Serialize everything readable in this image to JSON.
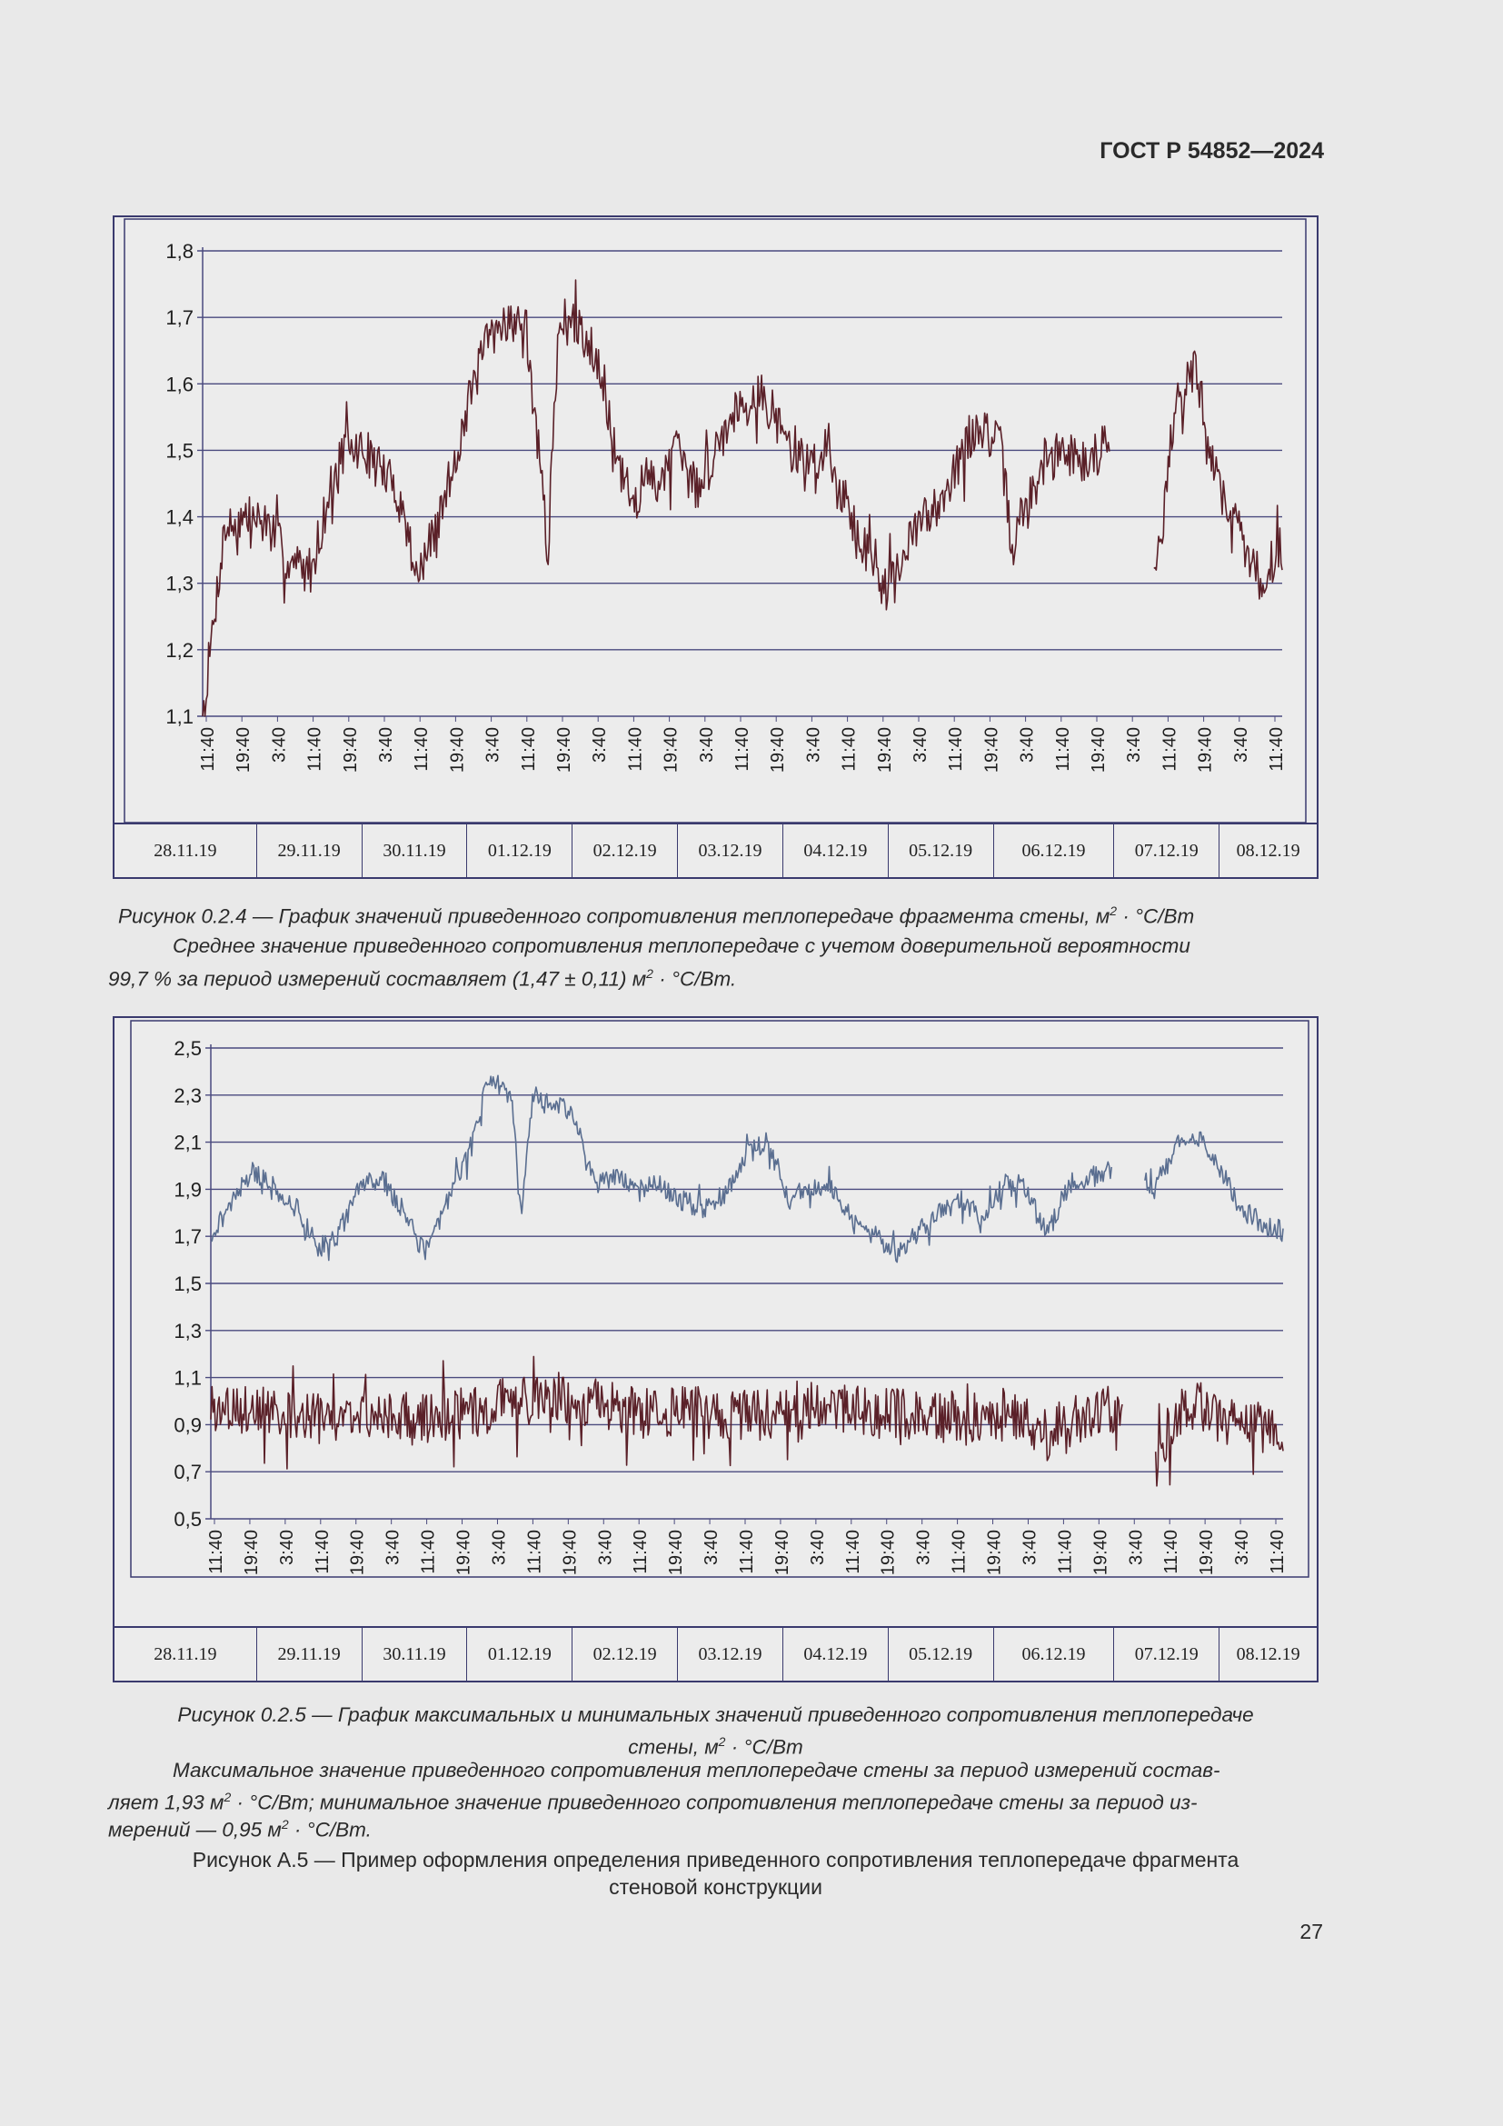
{
  "header": {
    "doc_code": "ГОСТ Р 54852—2024"
  },
  "page_number": "27",
  "colors": {
    "frame": "#3a3a6e",
    "grid": "#4a4a7e",
    "resistance_line": "#5a2028",
    "max_line": "#5a6e90",
    "min_line": "#5a2028"
  },
  "date_labels": [
    "28.11.19",
    "29.11.19",
    "30.11.19",
    "01.12.19",
    "02.12.19",
    "03.12.19",
    "04.12.19",
    "05.12.19",
    "06.12.19",
    "07.12.19",
    "08.12.19"
  ],
  "chart_data": [
    {
      "type": "line",
      "figure": "0.2.4",
      "title": "",
      "ylim": [
        1.1,
        1.8
      ],
      "yticks": [
        "1,1",
        "1,2",
        "1,3",
        "1,4",
        "1,5",
        "1,6",
        "1,7",
        "1,8"
      ],
      "xticks": [
        "11:40",
        "19:40",
        "3:40",
        "11:40",
        "19:40",
        "3:40",
        "11:40",
        "19:40",
        "3:40",
        "11:40",
        "19:40",
        "3:40",
        "11:40",
        "19:40",
        "3:40",
        "11:40",
        "19:40",
        "3:40",
        "11:40",
        "19:40",
        "3:40",
        "11:40",
        "19:40",
        "3:40",
        "11:40",
        "19:40",
        "3:40",
        "11:40",
        "19:40",
        "3:40",
        "11:40"
      ],
      "series": [
        {
          "name": "R",
          "x": [
            0.0,
            0.02,
            0.04,
            0.06,
            0.08,
            0.1,
            0.12,
            0.13,
            0.15,
            0.18,
            0.2,
            0.22,
            0.24,
            0.26,
            0.28,
            0.3,
            0.32,
            0.33,
            0.35,
            0.36,
            0.37,
            0.38,
            0.39,
            0.4,
            0.41,
            0.42,
            0.43,
            0.44,
            0.45,
            0.46,
            0.48,
            0.5,
            0.52,
            0.54,
            0.56,
            0.58,
            0.6,
            0.62,
            0.64,
            0.66,
            0.68,
            0.7,
            0.72,
            0.74,
            0.75,
            0.76,
            0.78,
            0.8,
            0.82,
            0.84,
            0.86,
            0.88,
            0.89,
            0.9,
            0.91,
            0.92,
            0.94,
            0.96,
            0.98,
            1.0
          ],
          "y": [
            1.1,
            1.38,
            1.4,
            1.39,
            1.33,
            1.32,
            1.45,
            1.5,
            1.5,
            1.44,
            1.31,
            1.4,
            1.53,
            1.65,
            1.7,
            1.68,
            1.35,
            1.7,
            1.68,
            1.66,
            1.62,
            1.5,
            1.45,
            1.42,
            1.46,
            1.45,
            1.48,
            1.5,
            1.46,
            1.44,
            1.52,
            1.58,
            1.58,
            1.52,
            1.48,
            1.5,
            1.4,
            1.33,
            1.3,
            1.38,
            1.42,
            1.48,
            1.54,
            1.5,
            1.35,
            1.4,
            1.48,
            1.5,
            1.48,
            1.52,
            null,
            1.32,
            1.4,
            1.56,
            1.6,
            1.62,
            1.45,
            1.38,
            1.3,
            1.36
          ],
          "noise": 0.035,
          "seed": 7
        }
      ],
      "caption": "Рисунок 0.2.4 — График значений приведенного сопротивления теплопередаче фрагмента стены, м",
      "caption_unit": "· °С/Вт",
      "note_line1": "Среднее значение приведенного сопротивления теплопередаче с учетом доверительной вероятности",
      "note_line2a": "99,7 % за период измерений составляет (1,47 ± 0,11) м",
      "note_line2b": "· °С/Вт."
    },
    {
      "type": "line",
      "figure": "0.2.5",
      "title": "",
      "ylim": [
        0.5,
        2.5
      ],
      "yticks": [
        "0,5",
        "0,7",
        "0,9",
        "1,1",
        "1,3",
        "1,5",
        "1,7",
        "1,9",
        "2,1",
        "2,3",
        "2,5"
      ],
      "xticks": [
        "11:40",
        "19:40",
        "3:40",
        "11:40",
        "19:40",
        "3:40",
        "11:40",
        "19:40",
        "3:40",
        "11:40",
        "19:40",
        "3:40",
        "11:40",
        "19:40",
        "3:40",
        "11:40",
        "19:40",
        "3:40",
        "11:40",
        "19:40",
        "3:40",
        "11:40",
        "19:40",
        "3:40",
        "11:40",
        "19:40",
        "3:40",
        "11:40",
        "19:40",
        "3:40",
        "11:40"
      ],
      "series": [
        {
          "name": "max",
          "x": [
            0.0,
            0.02,
            0.04,
            0.06,
            0.08,
            0.1,
            0.12,
            0.14,
            0.16,
            0.18,
            0.2,
            0.22,
            0.24,
            0.26,
            0.28,
            0.29,
            0.3,
            0.31,
            0.32,
            0.34,
            0.36,
            0.38,
            0.4,
            0.42,
            0.44,
            0.46,
            0.48,
            0.5,
            0.52,
            0.54,
            0.56,
            0.58,
            0.6,
            0.62,
            0.64,
            0.66,
            0.68,
            0.7,
            0.72,
            0.74,
            0.76,
            0.78,
            0.8,
            0.82,
            0.84,
            0.86,
            0.87,
            0.88,
            0.9,
            0.92,
            0.94,
            0.96,
            0.98,
            1.0
          ],
          "y": [
            1.7,
            1.85,
            1.98,
            1.9,
            1.82,
            1.65,
            1.72,
            1.92,
            1.95,
            1.8,
            1.62,
            1.85,
            2.05,
            2.38,
            2.3,
            1.8,
            2.3,
            2.28,
            2.28,
            2.2,
            1.92,
            1.95,
            1.9,
            1.92,
            1.85,
            1.82,
            1.88,
            2.05,
            2.1,
            1.85,
            1.92,
            1.9,
            1.75,
            1.7,
            1.62,
            1.72,
            1.8,
            1.85,
            1.78,
            1.92,
            1.9,
            1.7,
            1.92,
            1.95,
            1.98,
            null,
            1.92,
            1.9,
            2.08,
            2.12,
            2.0,
            1.82,
            1.75,
            1.72
          ],
          "noise": 0.045,
          "seed": 21
        },
        {
          "name": "min",
          "x": [
            0.0,
            0.05,
            0.1,
            0.15,
            0.2,
            0.25,
            0.28,
            0.32,
            0.36,
            0.4,
            0.45,
            0.5,
            0.55,
            0.6,
            0.65,
            0.7,
            0.75,
            0.78,
            0.8,
            0.85,
            0.87,
            0.88,
            0.9,
            0.92,
            0.95,
            1.0
          ],
          "y": [
            0.98,
            0.95,
            0.92,
            0.95,
            0.93,
            0.96,
            1.0,
            1.02,
            1.0,
            0.95,
            0.96,
            0.93,
            0.98,
            0.96,
            0.94,
            0.92,
            0.96,
            0.85,
            0.92,
            0.98,
            null,
            0.72,
            0.95,
            1.0,
            0.9,
            0.88
          ],
          "noise": 0.11,
          "seed": 3
        }
      ],
      "caption_l1": "Рисунок 0.2.5 — График максимальных и минимальных значений приведенного сопротивления теплопередаче",
      "caption_l2a": "стены, м",
      "caption_l2b": "· °С/Вт",
      "note_line1": "Максимальное значение приведенного сопротивления теплопередаче стены за период измерений состав-",
      "note_line2a": "ляет 1,93 м",
      "note_line2b": "· °С/Вт; минимальное значение приведенного сопротивления теплопередаче стены за период из-",
      "note_line3a": "мерений — 0,95 м",
      "note_line3b": "· °С/Вт."
    }
  ],
  "figure_caption_a5_l1": "Рисунок А.5 — Пример оформления определения приведенного сопротивления теплопередаче фрагмента",
  "figure_caption_a5_l2": "стеновой конструкции",
  "sup_2": "2"
}
